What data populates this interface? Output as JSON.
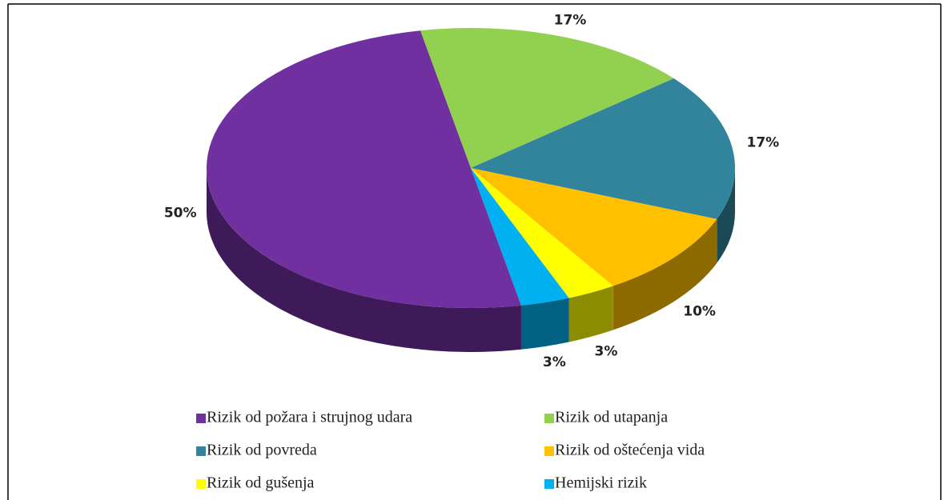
{
  "chart_data": {
    "type": "pie",
    "categories": [
      "Rizik od požara i strujnog udara",
      "Rizik od utapanja",
      "Rizik od povreda",
      "Rizik od oštećenja vida",
      "Rizik od gušenja",
      "Hemijski rizik"
    ],
    "values": [
      50,
      17,
      17,
      10,
      3,
      3
    ],
    "value_labels": [
      "50%",
      "17%",
      "17%",
      "10%",
      "3%",
      "3%"
    ],
    "colors": [
      "#7030a0",
      "#92d050",
      "#31849b",
      "#ffc000",
      "#ffff00",
      "#00b0f0"
    ]
  }
}
